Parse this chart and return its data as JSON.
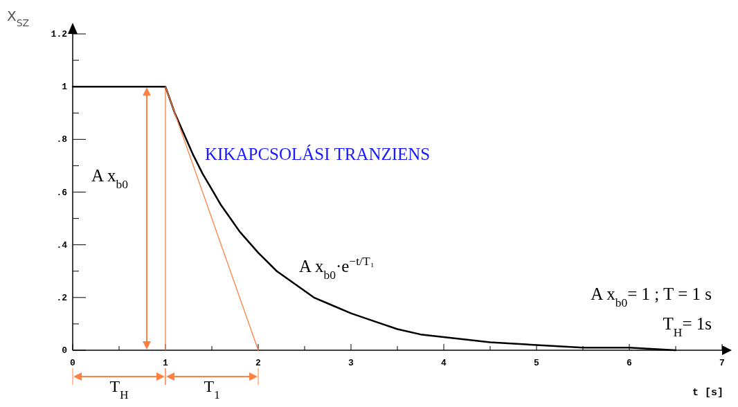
{
  "chart_data": {
    "type": "line",
    "title": "KIKAPCSOLÁSI TRANZIENS",
    "xlabel": "t [s]",
    "ylabel": "X$_{SZ}$",
    "xlim": [
      0,
      7
    ],
    "ylim": [
      0,
      1.2
    ],
    "xticks": [
      0,
      {
        "value": 0.5,
        "label": null
      },
      1,
      {
        "value": 1.5,
        "label": null
      },
      2,
      {
        "value": 2.5,
        "label": null
      },
      3,
      {
        "value": 3.5,
        "label": null
      },
      4,
      {
        "value": 4.5,
        "label": null
      },
      5,
      {
        "value": 5.5,
        "label": null
      },
      6,
      {
        "value": 6.5,
        "label": null
      },
      7
    ],
    "yticks": [
      {
        "value": 0,
        "label": "0"
      },
      {
        "value": 0.1,
        "label": null
      },
      {
        "value": 0.2,
        "label": ".2"
      },
      {
        "value": 0.3,
        "label": null
      },
      {
        "value": 0.4,
        "label": ".4"
      },
      {
        "value": 0.5,
        "label": null
      },
      {
        "value": 0.6,
        "label": ".6"
      },
      {
        "value": 0.7,
        "label": null
      },
      {
        "value": 0.8,
        "label": ".8"
      },
      {
        "value": 0.9,
        "label": null
      },
      {
        "value": 1,
        "label": "1"
      },
      {
        "value": 1.1,
        "label": null
      },
      {
        "value": 1.2,
        "label": "1.2"
      }
    ],
    "series": [
      {
        "color": "#000000",
        "x": [
          0,
          1,
          1.1,
          1.2,
          1.3,
          1.4,
          1.5,
          1.6,
          1.7,
          1.8,
          1.9,
          2,
          2.2,
          2.4,
          2.6,
          2.8,
          3,
          3.25,
          3.5,
          3.75,
          4,
          4.5,
          5,
          5.5,
          6,
          6.5
        ],
        "values": [
          1,
          1,
          0.9,
          0.82,
          0.74,
          0.67,
          0.61,
          0.55,
          0.5,
          0.45,
          0.41,
          0.37,
          0.3,
          0.25,
          0.2,
          0.17,
          0.14,
          0.11,
          0.08,
          0.06,
          0.05,
          0.03,
          0.02,
          0.01,
          0.01,
          0
        ]
      },
      {
        "color": "#ff8040",
        "x": [
          1,
          2
        ],
        "values": [
          1,
          0
        ]
      }
    ],
    "ref_lines": [
      {
        "axis": "x",
        "value": 1,
        "color": "#ff8040"
      }
    ],
    "annotations": [
      "A x$_{b0}$",
      "A x$_{b0}$·e$^{−t/T₁}$",
      "A x$_{b0}$= 1 ; T = 1 s",
      "T$_{H}$= 1s",
      "T$_{H}$",
      "T$_{1}$"
    ],
    "grid": false,
    "marker": "none",
    "line_style": "solid"
  }
}
